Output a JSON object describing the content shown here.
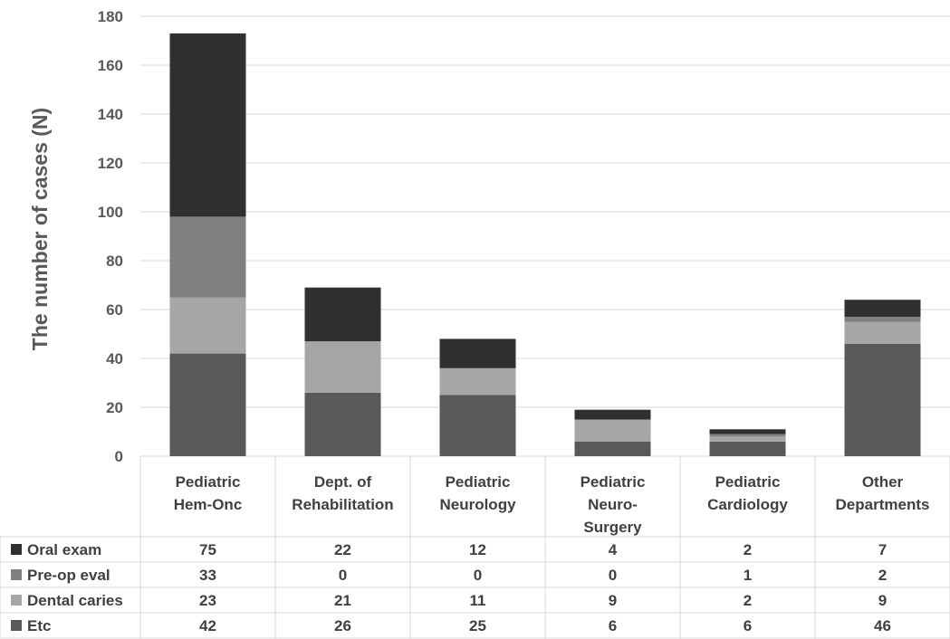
{
  "chart_data": {
    "type": "bar",
    "stacked": true,
    "title": "",
    "xlabel": "",
    "ylabel": "The number of cases (N)",
    "ylim": [
      0,
      180
    ],
    "yticks": [
      0,
      20,
      40,
      60,
      80,
      100,
      120,
      140,
      160,
      180
    ],
    "grid": true,
    "legend": "data table below chart",
    "categories": [
      [
        "Pediatric",
        "Hem-Onc"
      ],
      [
        "Dept. of",
        "Rehabilitation"
      ],
      [
        "Pediatric",
        "Neurology"
      ],
      [
        "Pediatric",
        "Neuro-",
        "Surgery"
      ],
      [
        "Pediatric",
        "Cardiology"
      ],
      [
        "Other",
        "Departments"
      ]
    ],
    "series": [
      {
        "name": "Etc",
        "color": "#595959",
        "values": [
          42,
          26,
          25,
          6,
          6,
          46
        ]
      },
      {
        "name": "Dental caries",
        "color": "#a6a6a6",
        "values": [
          23,
          21,
          11,
          9,
          2,
          9
        ]
      },
      {
        "name": "Pre-op eval",
        "color": "#808080",
        "values": [
          33,
          0,
          0,
          0,
          1,
          2
        ]
      },
      {
        "name": "Oral exam",
        "color": "#303030",
        "values": [
          75,
          22,
          12,
          4,
          2,
          7
        ]
      }
    ],
    "table_order": [
      "Oral exam",
      "Pre-op eval",
      "Dental caries",
      "Etc"
    ]
  }
}
